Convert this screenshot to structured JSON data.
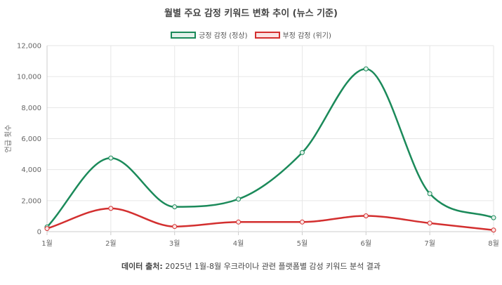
{
  "chart_data": {
    "type": "line",
    "title": "월별 주요 감정 키워드 변화 추이 (뉴스 기준)",
    "categories": [
      "1월",
      "2월",
      "3월",
      "4월",
      "5월",
      "6월",
      "7월",
      "8월"
    ],
    "series": [
      {
        "name": "긍정 감정 (정상)",
        "values": [
          300,
          4750,
          1600,
          2100,
          5100,
          10500,
          2450,
          900
        ],
        "color": "#1b8a5a",
        "fill": "#e3f1ea"
      },
      {
        "name": "부정 감정 (위기)",
        "values": [
          200,
          1500,
          330,
          620,
          620,
          1020,
          550,
          100
        ],
        "color": "#d32f2f",
        "fill": "#fbe4e4"
      }
    ],
    "ylabel": "언급 횟수",
    "xlabel": "",
    "ylim": [
      0,
      12000
    ],
    "yticks": [
      "0",
      "2,000",
      "4,000",
      "6,000",
      "8,000",
      "10,000",
      "12,000"
    ],
    "ytick_values": [
      0,
      2000,
      4000,
      6000,
      8000,
      10000,
      12000
    ],
    "grid": true,
    "legend": "top"
  },
  "source": {
    "label": "데이터 출처:",
    "text": " 2025년 1월-8월 우크라이나 관련 플랫폼별 감성 키워드 분석 결과"
  }
}
